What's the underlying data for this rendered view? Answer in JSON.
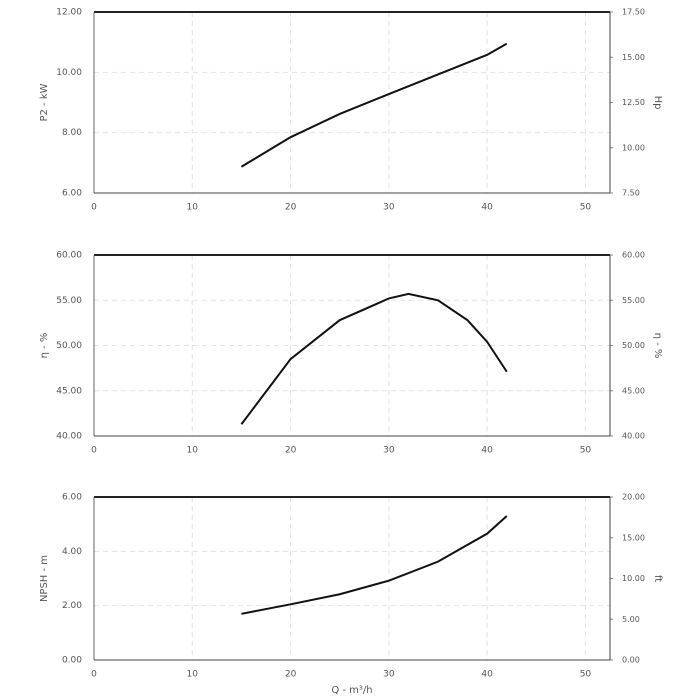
{
  "chart_data": [
    {
      "type": "line",
      "ylabel": "P2 - kW",
      "y2label": "Hp",
      "x": [
        15,
        20,
        25,
        30,
        35,
        40,
        42
      ],
      "values": [
        6.87,
        7.85,
        8.62,
        9.28,
        9.93,
        10.58,
        10.95
      ],
      "color": "#111111",
      "xlim": [
        0,
        52.5
      ],
      "xticks": [
        0,
        10,
        20,
        30,
        40,
        50
      ],
      "ylim": [
        6,
        12
      ],
      "yticks": [
        {
          "value": 6,
          "label": "6.00"
        },
        {
          "value": 8,
          "label": "8.00"
        },
        {
          "value": 10,
          "label": "10.00"
        },
        {
          "value": 12,
          "label": "12.00"
        }
      ],
      "y2lim": [
        7.5,
        17.5
      ],
      "y2ticks": [
        {
          "value": 7.5,
          "label": "7.50"
        },
        {
          "value": 10,
          "label": "10.00"
        },
        {
          "value": 12.5,
          "label": "12.50"
        },
        {
          "value": 15,
          "label": "15.00"
        },
        {
          "value": 17.5,
          "label": "17.50"
        }
      ],
      "grid": true
    },
    {
      "type": "line",
      "ylabel": "η - %",
      "y2label": "η - %",
      "x": [
        15,
        20,
        25,
        30,
        32,
        35,
        38,
        40,
        42
      ],
      "values": [
        41.3,
        48.5,
        52.8,
        55.2,
        55.7,
        55.0,
        52.8,
        50.4,
        47.1
      ],
      "color": "#111111",
      "xlim": [
        0,
        52.5
      ],
      "xticks": [
        0,
        10,
        20,
        30,
        40,
        50
      ],
      "ylim": [
        40,
        60
      ],
      "yticks": [
        {
          "value": 40,
          "label": "40.00"
        },
        {
          "value": 45,
          "label": "45.00"
        },
        {
          "value": 50,
          "label": "50.00"
        },
        {
          "value": 55,
          "label": "55.00"
        },
        {
          "value": 60,
          "label": "60.00"
        }
      ],
      "y2lim": [
        40,
        60
      ],
      "y2ticks": [
        {
          "value": 40,
          "label": "40.00"
        },
        {
          "value": 45,
          "label": "45.00"
        },
        {
          "value": 50,
          "label": "50.00"
        },
        {
          "value": 55,
          "label": "55.00"
        },
        {
          "value": 60,
          "label": "60.00"
        }
      ],
      "grid": true
    },
    {
      "type": "line",
      "ylabel": "NPSH - m",
      "y2label": "ft",
      "xlabel": "Q - m³/h",
      "x": [
        15,
        20,
        25,
        30,
        35,
        40,
        42
      ],
      "values": [
        1.7,
        2.05,
        2.42,
        2.92,
        3.62,
        4.65,
        5.3
      ],
      "color": "#111111",
      "xlim": [
        0,
        52.5
      ],
      "xticks": [
        0,
        10,
        20,
        30,
        40,
        50
      ],
      "ylim": [
        0,
        6
      ],
      "yticks": [
        {
          "value": 0,
          "label": "0.00"
        },
        {
          "value": 2,
          "label": "2.00"
        },
        {
          "value": 4,
          "label": "4.00"
        },
        {
          "value": 6,
          "label": "6.00"
        }
      ],
      "y2lim": [
        0,
        20
      ],
      "y2ticks": [
        {
          "value": 0,
          "label": "0.00"
        },
        {
          "value": 5,
          "label": "5.00"
        },
        {
          "value": 10,
          "label": "10.00"
        },
        {
          "value": 15,
          "label": "15.00"
        },
        {
          "value": 20,
          "label": "20.00"
        }
      ],
      "grid": true
    }
  ]
}
